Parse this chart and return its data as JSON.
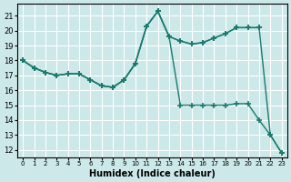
{
  "xlabel": "Humidex (Indice chaleur)",
  "xlim": [
    -0.5,
    23.5
  ],
  "ylim": [
    11.5,
    21.8
  ],
  "yticks": [
    12,
    13,
    14,
    15,
    16,
    17,
    18,
    19,
    20,
    21
  ],
  "xticks": [
    0,
    1,
    2,
    3,
    4,
    5,
    6,
    7,
    8,
    9,
    10,
    11,
    12,
    13,
    14,
    15,
    16,
    17,
    18,
    19,
    20,
    21,
    22,
    23
  ],
  "bg_color": "#cce8e8",
  "grid_color": "#ffffff",
  "line_color": "#1a7a6e",
  "curve1_x": [
    0,
    1,
    2,
    3,
    4,
    5,
    6,
    7,
    8,
    9,
    10,
    11,
    12,
    13,
    14,
    15,
    16,
    17,
    18,
    19,
    20,
    21
  ],
  "curve1_y": [
    18.0,
    17.5,
    17.2,
    17.0,
    17.1,
    17.1,
    16.7,
    16.3,
    16.2,
    16.7,
    17.8,
    20.3,
    21.3,
    19.6,
    19.3,
    19.1,
    19.2,
    19.5,
    19.8,
    20.2,
    20.2,
    20.2
  ],
  "curve2_x": [
    0,
    1,
    2,
    3,
    4,
    5,
    6,
    7,
    8,
    9,
    10,
    11,
    12,
    13,
    14,
    15,
    16,
    17,
    18,
    19,
    20,
    21,
    22,
    23
  ],
  "curve2_y": [
    18.0,
    17.5,
    17.2,
    17.0,
    17.1,
    17.1,
    16.7,
    16.3,
    16.2,
    16.7,
    17.8,
    20.3,
    21.3,
    19.6,
    19.3,
    19.1,
    19.2,
    19.5,
    19.8,
    20.2,
    20.2,
    20.2,
    13.0,
    11.8
  ],
  "curve3_x": [
    0,
    1,
    2,
    3,
    4,
    5,
    6,
    7,
    8,
    9,
    10,
    11,
    12,
    13,
    14,
    15,
    16,
    17,
    18,
    19,
    20,
    21,
    22,
    23
  ],
  "curve3_y": [
    18.0,
    17.5,
    17.2,
    17.0,
    17.1,
    17.1,
    16.7,
    16.3,
    16.2,
    16.7,
    17.8,
    20.3,
    21.3,
    19.6,
    15.0,
    15.0,
    15.0,
    15.0,
    15.0,
    15.1,
    15.1,
    14.0,
    13.0,
    11.8
  ]
}
